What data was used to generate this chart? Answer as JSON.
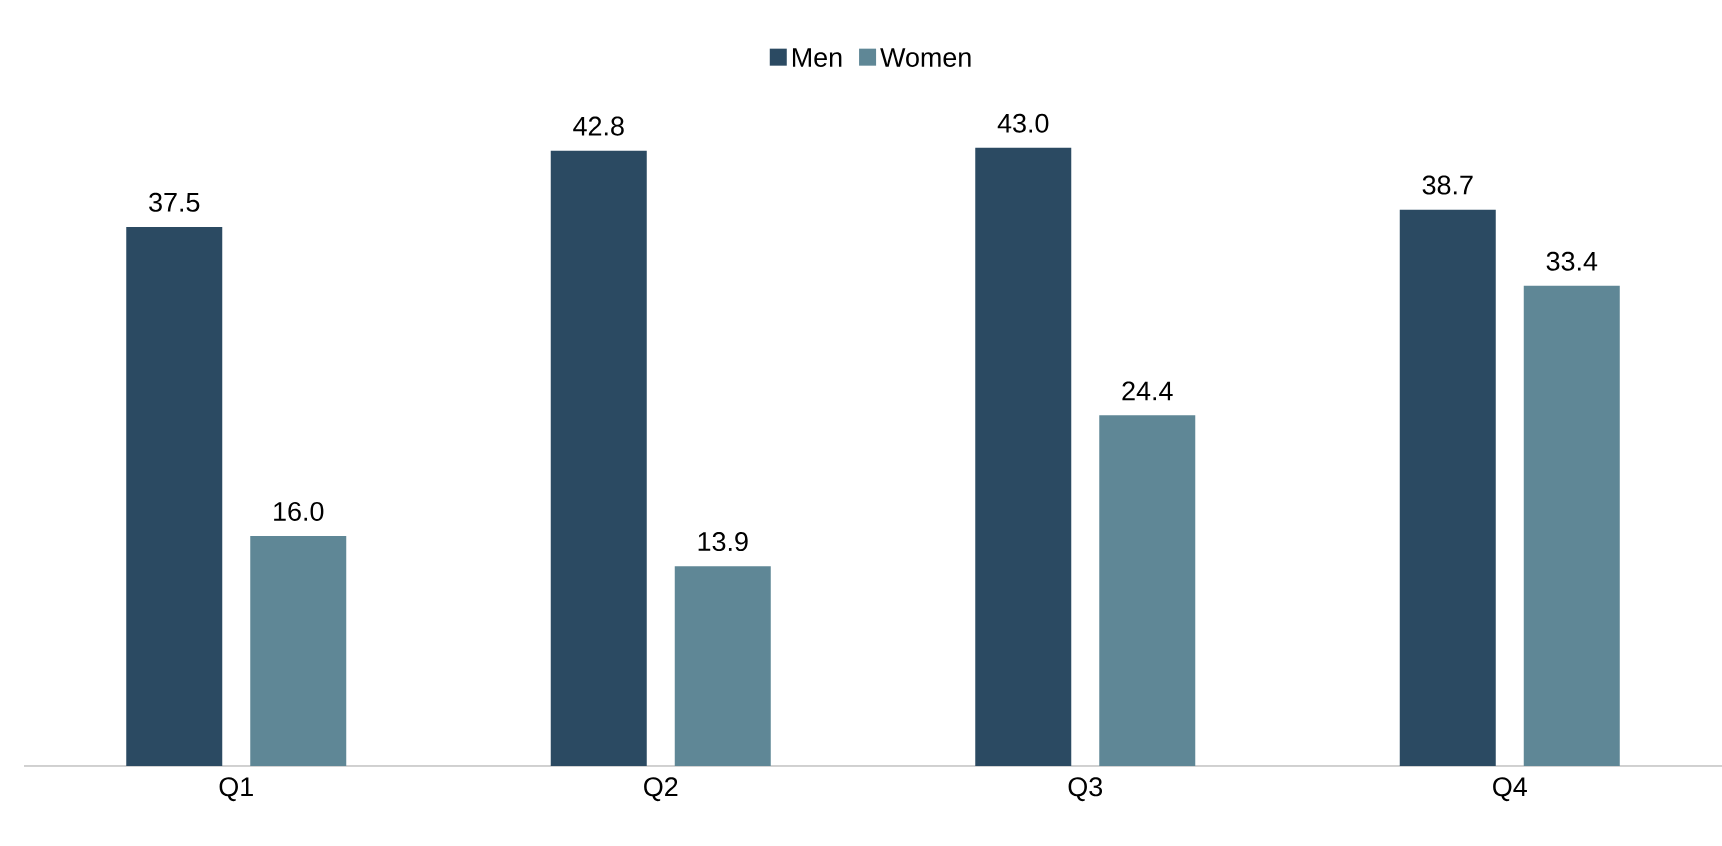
{
  "chart_data": {
    "type": "bar",
    "categories": [
      "Q1",
      "Q2",
      "Q3",
      "Q4"
    ],
    "series": [
      {
        "name": "Men",
        "color": "#2b4a62",
        "values": [
          37.5,
          42.8,
          43.0,
          38.7
        ],
        "value_labels": [
          "37.5",
          "42.8",
          "43.0",
          "38.7"
        ]
      },
      {
        "name": "Women",
        "color": "#5f8796",
        "values": [
          16.0,
          13.9,
          24.4,
          33.4
        ],
        "value_labels": [
          "16.0",
          "13.9",
          "24.4",
          "33.4"
        ]
      }
    ],
    "legend": "top"
  }
}
